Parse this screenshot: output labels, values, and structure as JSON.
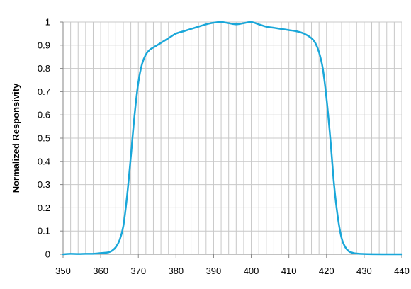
{
  "chart_data": {
    "type": "line",
    "title": "",
    "xlabel": "",
    "ylabel": "Normalized Responsivity",
    "xlim": [
      350,
      440
    ],
    "ylim": [
      0,
      1
    ],
    "x_ticks": [
      350,
      360,
      370,
      380,
      390,
      400,
      410,
      420,
      430,
      440
    ],
    "y_ticks": [
      0,
      0.1,
      0.2,
      0.3,
      0.4,
      0.5,
      0.6,
      0.7,
      0.8,
      0.9,
      1
    ],
    "x_minor_step": 2,
    "grid": true,
    "legend": "none",
    "colors": {
      "series": "#1aa7d9",
      "grid": "#c8c8c8",
      "axis": "#868686"
    },
    "series": [
      {
        "x": [
          350,
          352,
          354,
          356,
          358,
          360,
          362,
          363,
          364,
          365,
          366,
          367,
          368,
          369,
          370,
          371,
          372,
          373,
          374,
          375,
          376,
          378,
          380,
          382,
          384,
          386,
          388,
          390,
          392,
          394,
          396,
          398,
          400,
          402,
          404,
          406,
          408,
          410,
          412,
          414,
          416,
          417,
          418,
          419,
          420,
          421,
          422,
          423,
          424,
          425,
          426,
          427,
          428,
          430,
          435,
          440
        ],
        "y": [
          0.0,
          0.002,
          0.001,
          0.002,
          0.002,
          0.005,
          0.008,
          0.015,
          0.03,
          0.06,
          0.12,
          0.25,
          0.42,
          0.6,
          0.74,
          0.82,
          0.86,
          0.88,
          0.89,
          0.9,
          0.91,
          0.93,
          0.95,
          0.96,
          0.97,
          0.98,
          0.99,
          0.997,
          1.0,
          0.995,
          0.99,
          0.995,
          1.0,
          0.99,
          0.98,
          0.975,
          0.97,
          0.965,
          0.96,
          0.95,
          0.93,
          0.91,
          0.87,
          0.8,
          0.67,
          0.5,
          0.3,
          0.16,
          0.07,
          0.03,
          0.012,
          0.006,
          0.003,
          0.001,
          0.0,
          0.0
        ]
      }
    ]
  }
}
